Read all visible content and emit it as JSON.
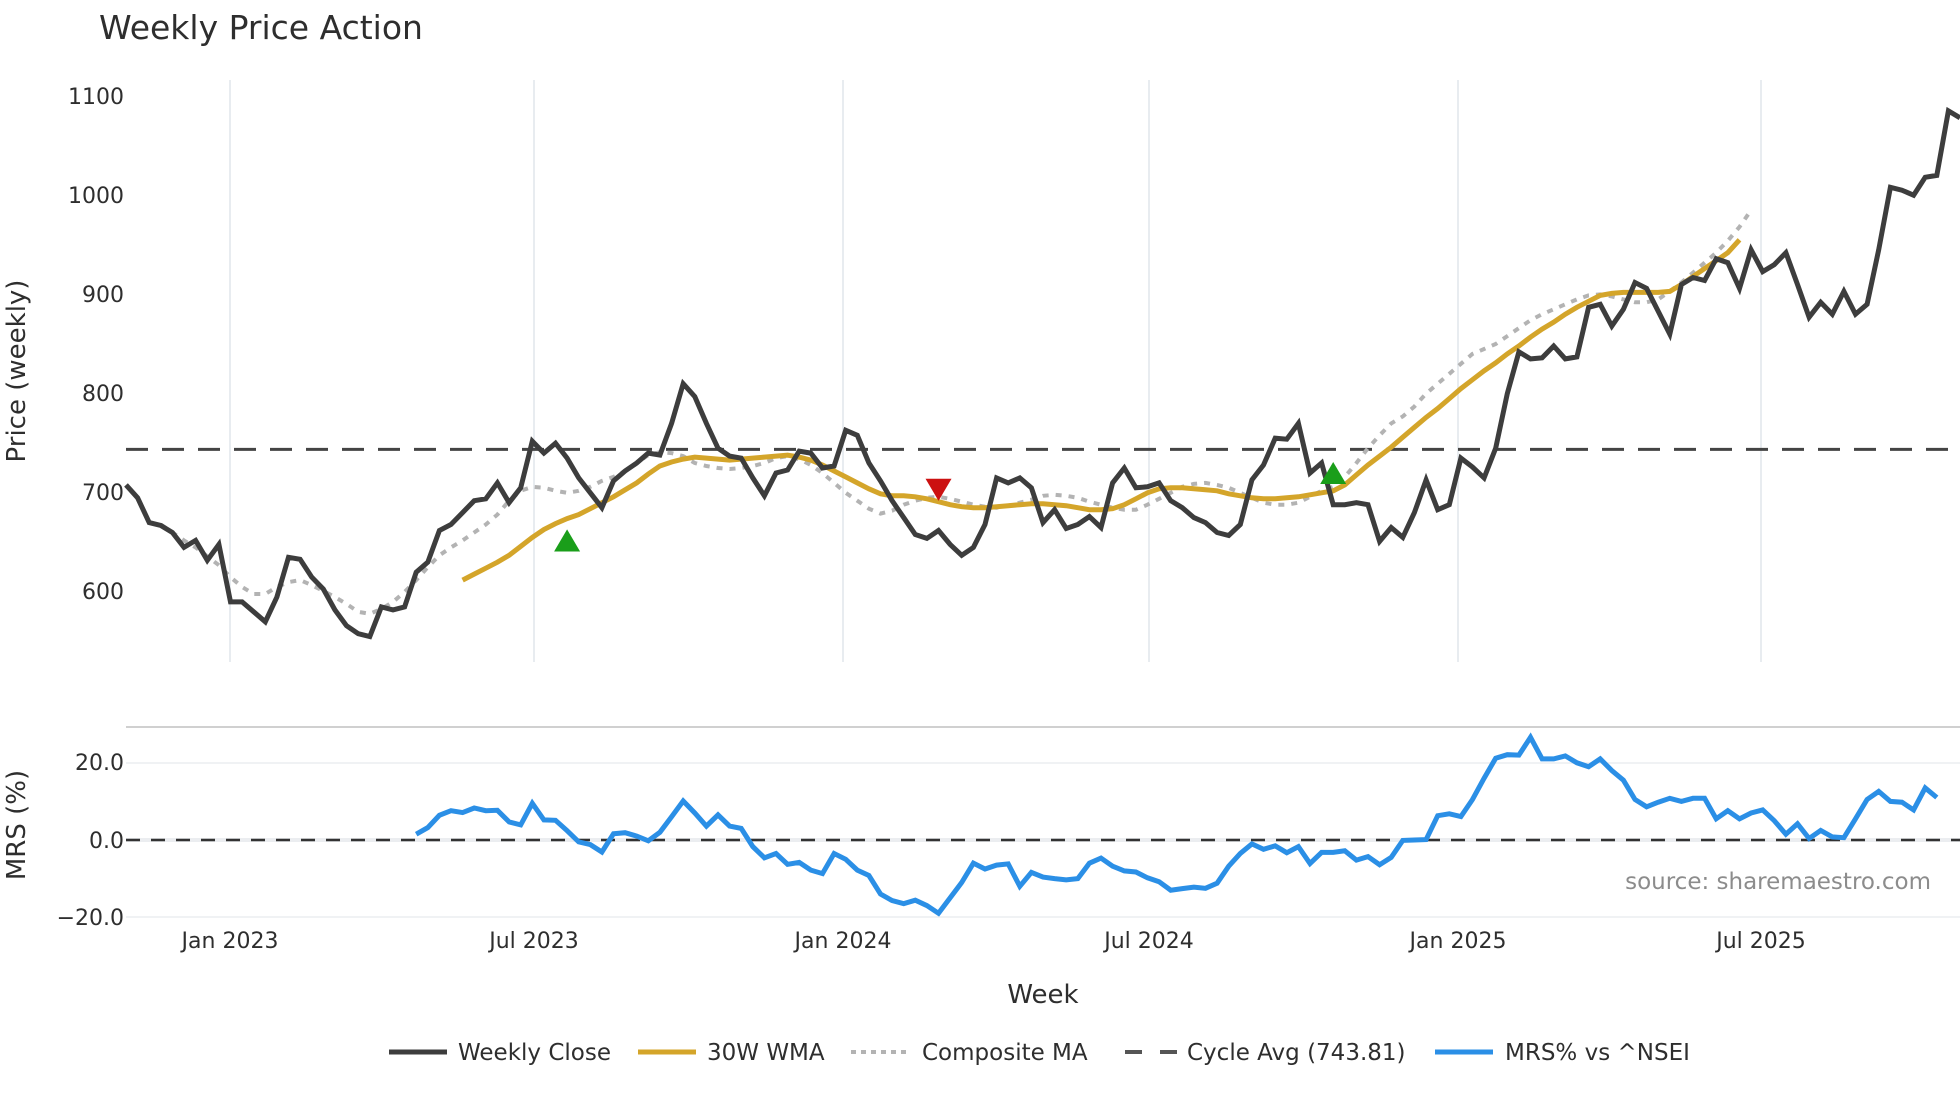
{
  "title": "Weekly Price Action",
  "watermark": "source: sharemaestro.com",
  "colors": {
    "weekly_close": "#3d3d3d",
    "wma": "#d4a52a",
    "composite": "#b3b3b3",
    "cycle_avg": "#444444",
    "mrs": "#2b8fe6",
    "buy_marker": "#1a9e1a",
    "sell_marker": "#cc1111",
    "grid": "#e8ecf0"
  },
  "legend": [
    {
      "name": "legend-weekly-close",
      "label": "Weekly Close",
      "style": "solid",
      "color": "#3d3d3d"
    },
    {
      "name": "legend-30w-wma",
      "label": "30W WMA",
      "style": "solid",
      "color": "#d4a52a"
    },
    {
      "name": "legend-composite-ma",
      "label": "Composite MA",
      "style": "dotted",
      "color": "#b3b3b3"
    },
    {
      "name": "legend-cycle-avg",
      "label": "Cycle Avg (743.81)",
      "style": "dashed",
      "color": "#555555"
    },
    {
      "name": "legend-mrs",
      "label": "MRS% vs ^NSEI",
      "style": "solid",
      "color": "#2b8fe6"
    }
  ],
  "chart_data": [
    {
      "type": "line",
      "title": "Weekly Price Action",
      "xlabel": "Week",
      "ylabel": "Price (weekly)",
      "ylim": [
        529,
        1115
      ],
      "yticks": [
        600,
        700,
        800,
        900,
        1000,
        1100
      ],
      "xticks": [
        "Jan 2023",
        "Jul 2023",
        "Jan 2024",
        "Jul 2024",
        "Jan 2025",
        "Jul 2025"
      ],
      "grid": "vertical",
      "legend_position": "bottom",
      "hlines": [
        {
          "name": "Cycle Avg",
          "value": 743.81,
          "style": "dashed"
        }
      ],
      "series": [
        {
          "name": "Weekly Close",
          "start_index": 0,
          "values": [
            708,
            695,
            670,
            667,
            660,
            645,
            652,
            632,
            648,
            590,
            590,
            580,
            570,
            595,
            635,
            633,
            615,
            603,
            582,
            566,
            558,
            555,
            585,
            582,
            585,
            620,
            630,
            662,
            668,
            680,
            692,
            694,
            710,
            690,
            705,
            752,
            740,
            750,
            735,
            715,
            700,
            685,
            712,
            722,
            730,
            740,
            738,
            770,
            810,
            797,
            770,
            745,
            737,
            735,
            715,
            697,
            720,
            723,
            742,
            740,
            725,
            727,
            763,
            758,
            730,
            712,
            692,
            675,
            658,
            654,
            662,
            648,
            637,
            645,
            668,
            715,
            710,
            715,
            705,
            670,
            683,
            664,
            668,
            676,
            665,
            710,
            725,
            705,
            706,
            710,
            692,
            685,
            675,
            670,
            660,
            657,
            668,
            713,
            728,
            755,
            754,
            770,
            720,
            730,
            688,
            688,
            690,
            688,
            651,
            665,
            655,
            680,
            713,
            683,
            688,
            735,
            726,
            715,
            745,
            800,
            842,
            835,
            836,
            848,
            835,
            837,
            887,
            890,
            868,
            885,
            912,
            906,
            883,
            860,
            910,
            917,
            914,
            936,
            932,
            906,
            945,
            923,
            930,
            942,
            910,
            877,
            892,
            880,
            903,
            880,
            890,
            945,
            1008,
            1005,
            1000,
            1018,
            1020,
            1085,
            1078
          ]
        },
        {
          "name": "30W WMA",
          "start_index": 29,
          "values": [
            612,
            618,
            624,
            630,
            637,
            646,
            655,
            663,
            669,
            674,
            678,
            684,
            690,
            696,
            703,
            710,
            719,
            727,
            731,
            734,
            736,
            735,
            734,
            733,
            734,
            735,
            736,
            737,
            738,
            736,
            733,
            728,
            722,
            716,
            710,
            704,
            699,
            697,
            697,
            696,
            694,
            691,
            688,
            686,
            685,
            685,
            686,
            687,
            688,
            689,
            689,
            688,
            687,
            685,
            683,
            683,
            684,
            688,
            694,
            700,
            704,
            705,
            705,
            704,
            703,
            702,
            699,
            697,
            695,
            694,
            694,
            695,
            696,
            698,
            700,
            702,
            708,
            718,
            728,
            737,
            746,
            756,
            766,
            776,
            785,
            795,
            805,
            814,
            823,
            831,
            840,
            848,
            857,
            865,
            872,
            880,
            887,
            893,
            899,
            901,
            902,
            902,
            902,
            902,
            903,
            910,
            918,
            926,
            934,
            942,
            955
          ]
        },
        {
          "name": "Composite MA",
          "start_index": 3,
          "values": [
            668,
            660,
            652,
            645,
            636,
            627,
            615,
            605,
            598,
            598,
            605,
            610,
            612,
            607,
            601,
            595,
            588,
            580,
            578,
            583,
            590,
            600,
            612,
            625,
            637,
            645,
            652,
            660,
            668,
            678,
            692,
            702,
            706,
            705,
            702,
            700,
            702,
            706,
            712,
            716,
            722,
            730,
            738,
            741,
            740,
            737,
            730,
            727,
            725,
            724,
            725,
            727,
            730,
            735,
            737,
            734,
            728,
            720,
            710,
            700,
            692,
            684,
            679,
            682,
            688,
            692,
            695,
            696,
            694,
            691,
            688,
            686,
            685,
            687,
            690,
            693,
            697,
            698,
            697,
            695,
            691,
            688,
            685,
            683,
            683,
            688,
            694,
            700,
            706,
            709,
            710,
            708,
            705,
            700,
            695,
            690,
            688,
            688,
            690,
            696,
            702,
            706,
            716,
            730,
            745,
            758,
            770,
            777,
            787,
            800,
            810,
            820,
            830,
            840,
            845,
            850,
            858,
            866,
            874,
            880,
            885,
            890,
            895,
            899,
            900,
            898,
            895,
            892,
            892,
            895,
            903,
            912,
            922,
            932,
            942,
            954,
            968,
            985
          ]
        },
        {
          "name": "MRS% vs ^NSEI",
          "axis": "mrs",
          "start_index": 25,
          "values": [
            1.5,
            3.2,
            6.4,
            7.6,
            7.1,
            8.3,
            7.6,
            7.7,
            4.7,
            3.9,
            9.5,
            5.2,
            5.1,
            2.4,
            -0.5,
            -1.2,
            -3.1,
            1.6,
            1.9,
            1.0,
            -0.2,
            2.0,
            6.0,
            10.1,
            7.0,
            3.6,
            6.5,
            3.6,
            3.0,
            -1.7,
            -4.6,
            -3.5,
            -6.3,
            -5.8,
            -7.8,
            -8.7,
            -3.5,
            -5.0,
            -7.8,
            -9.2,
            -14.0,
            -15.7,
            -16.5,
            -15.6,
            -17.0,
            -19.0,
            -15.0,
            -11.0,
            -6.0,
            -7.5,
            -6.5,
            -6.2,
            -12.0,
            -8.4,
            -9.6,
            -10.0,
            -10.3,
            -10.0,
            -6.0,
            -4.7,
            -6.8,
            -8.0,
            -8.3,
            -9.8,
            -10.8,
            -13.0,
            -12.6,
            -12.2,
            -12.5,
            -11.2,
            -6.8,
            -3.5,
            -1.0,
            -2.4,
            -1.5,
            -3.3,
            -1.7,
            -6.1,
            -3.2,
            -3.2,
            -2.8,
            -5.2,
            -4.3,
            -6.4,
            -4.5,
            -0.1,
            0.0,
            0.1,
            6.3,
            6.8,
            6.1,
            10.5,
            16.0,
            21.2,
            22.1,
            22.0,
            26.6,
            21.0,
            21.0,
            21.8,
            20.0,
            19.0,
            21.0,
            18.0,
            15.5,
            10.5,
            8.6,
            9.8,
            10.8,
            10.0,
            10.8,
            10.8,
            5.5,
            7.6,
            5.5,
            7.0,
            7.8,
            5.0,
            1.5,
            4.2,
            0.4,
            2.5,
            0.8,
            0.6,
            5.5,
            10.5,
            12.6,
            10.0,
            9.8,
            7.8,
            13.5,
            11.0
          ]
        }
      ],
      "markers": [
        {
          "type": "buy",
          "shape": "triangle-up",
          "index": 38,
          "value": 650
        },
        {
          "type": "sell",
          "shape": "triangle-down",
          "index": 70,
          "value": 705
        },
        {
          "type": "buy",
          "shape": "triangle-up",
          "index": 104,
          "value": 718
        }
      ]
    },
    {
      "type": "line",
      "title": "",
      "ylabel": "MRS (%)",
      "ylim": [
        -21,
        29
      ],
      "yticks": [
        -20.0,
        0.0,
        20.0
      ],
      "ytick_labels": [
        "−20.0",
        "0.0",
        "20.0"
      ],
      "hlines": [
        {
          "value": 0.0,
          "style": "dashed"
        }
      ],
      "series_ref": "MRS% vs ^NSEI"
    }
  ],
  "axes": {
    "price": {
      "ylabel": "Price (weekly)",
      "ytick_labels": [
        "1100",
        "1000",
        "900",
        "800",
        "700",
        "600"
      ]
    },
    "mrs": {
      "ylabel": "MRS (%)",
      "ytick_labels": [
        "20.0",
        "0.0",
        "−20.0"
      ]
    },
    "x": {
      "label": "Week",
      "tick_labels": [
        "Jan 2023",
        "Jul 2023",
        "Jan 2024",
        "Jul 2024",
        "Jan 2025",
        "Jul 2025"
      ]
    }
  }
}
